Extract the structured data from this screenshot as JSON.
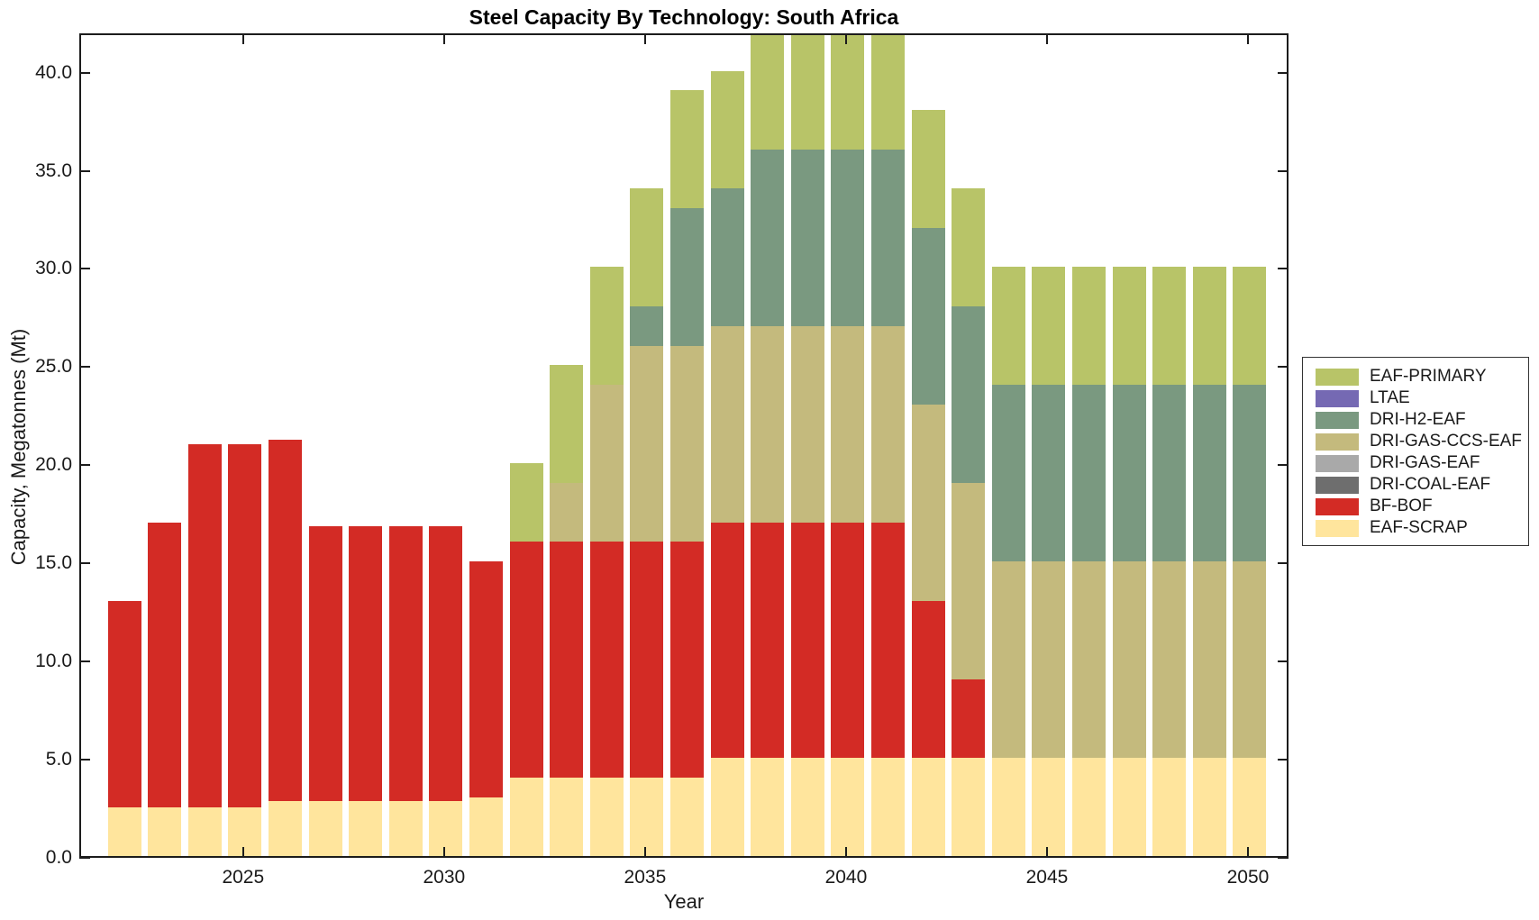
{
  "chart_data": {
    "type": "bar",
    "stacked": true,
    "title": "Steel Capacity By Technology: South Africa",
    "xlabel": "Year",
    "ylabel": "Capacity, Megatonnes (Mt)",
    "ylim": [
      0,
      42
    ],
    "yticks": [
      0,
      5,
      10,
      15,
      20,
      25,
      30,
      35,
      40
    ],
    "ytick_format": "one_decimal",
    "xticks": [
      2025,
      2030,
      2035,
      2040,
      2045,
      2050
    ],
    "x": [
      2022,
      2023,
      2024,
      2025,
      2026,
      2027,
      2028,
      2029,
      2030,
      2031,
      2032,
      2033,
      2034,
      2035,
      2036,
      2037,
      2038,
      2039,
      2040,
      2041,
      2042,
      2043,
      2044,
      2045,
      2046,
      2047,
      2048,
      2049,
      2050
    ],
    "grid": false,
    "legend_position": "right-outside",
    "legend_order": "top_to_bottom_reverse_of_stack",
    "series": [
      {
        "name": "EAF-SCRAP",
        "color": "#ffe59d",
        "values": [
          2.5,
          2.5,
          2.5,
          2.5,
          2.8,
          2.8,
          2.8,
          2.8,
          2.8,
          3.0,
          4,
          4,
          4,
          4,
          4,
          5,
          5,
          5,
          5,
          5,
          5,
          5,
          5,
          5,
          5,
          5,
          5,
          5,
          5
        ]
      },
      {
        "name": "BF-BOF",
        "color": "#d32b25",
        "values": [
          10.5,
          14.5,
          18.5,
          18.5,
          18.4,
          14,
          14,
          14,
          14,
          12,
          12,
          12,
          12,
          12,
          12,
          12,
          12,
          12,
          12,
          12,
          8,
          4,
          0,
          0,
          0,
          0,
          0,
          0,
          0
        ]
      },
      {
        "name": "DRI-COAL-EAF",
        "color": "#6e6e6e",
        "values": [
          0,
          0,
          0,
          0,
          0,
          0,
          0,
          0,
          0,
          0,
          0,
          0,
          0,
          0,
          0,
          0,
          0,
          0,
          0,
          0,
          0,
          0,
          0,
          0,
          0,
          0,
          0,
          0,
          0
        ]
      },
      {
        "name": "DRI-GAS-EAF",
        "color": "#a9a9a9",
        "values": [
          0,
          0,
          0,
          0,
          0,
          0,
          0,
          0,
          0,
          0,
          0,
          0,
          0,
          0,
          0,
          0,
          0,
          0,
          0,
          0,
          0,
          0,
          0,
          0,
          0,
          0,
          0,
          0,
          0
        ]
      },
      {
        "name": "DRI-GAS-CCS-EAF",
        "color": "#c4ba7d",
        "values": [
          0,
          0,
          0,
          0,
          0,
          0,
          0,
          0,
          0,
          0,
          0,
          3,
          8,
          10,
          10,
          10,
          10,
          10,
          10,
          10,
          10,
          10,
          10,
          10,
          10,
          10,
          10,
          10,
          10
        ]
      },
      {
        "name": "DRI-H2-EAF",
        "color": "#7a9980",
        "values": [
          0,
          0,
          0,
          0,
          0,
          0,
          0,
          0,
          0,
          0,
          0,
          0,
          0,
          2,
          7,
          7,
          9,
          9,
          9,
          9,
          9,
          9,
          9,
          9,
          9,
          9,
          9,
          9,
          9
        ]
      },
      {
        "name": "LTAE",
        "color": "#7569b3",
        "values": [
          0,
          0,
          0,
          0,
          0,
          0,
          0,
          0,
          0,
          0,
          0,
          0,
          0,
          0,
          0,
          0,
          0,
          0,
          0,
          0,
          0,
          0,
          0,
          0,
          0,
          0,
          0,
          0,
          0
        ]
      },
      {
        "name": "EAF-PRIMARY",
        "color": "#b8c468",
        "values": [
          0,
          0,
          0,
          0,
          0,
          0,
          0,
          0,
          0,
          0,
          4,
          6,
          6,
          6,
          6,
          6,
          6,
          6,
          6,
          6,
          6,
          6,
          6,
          6,
          6,
          6,
          6,
          6,
          6
        ]
      }
    ]
  }
}
